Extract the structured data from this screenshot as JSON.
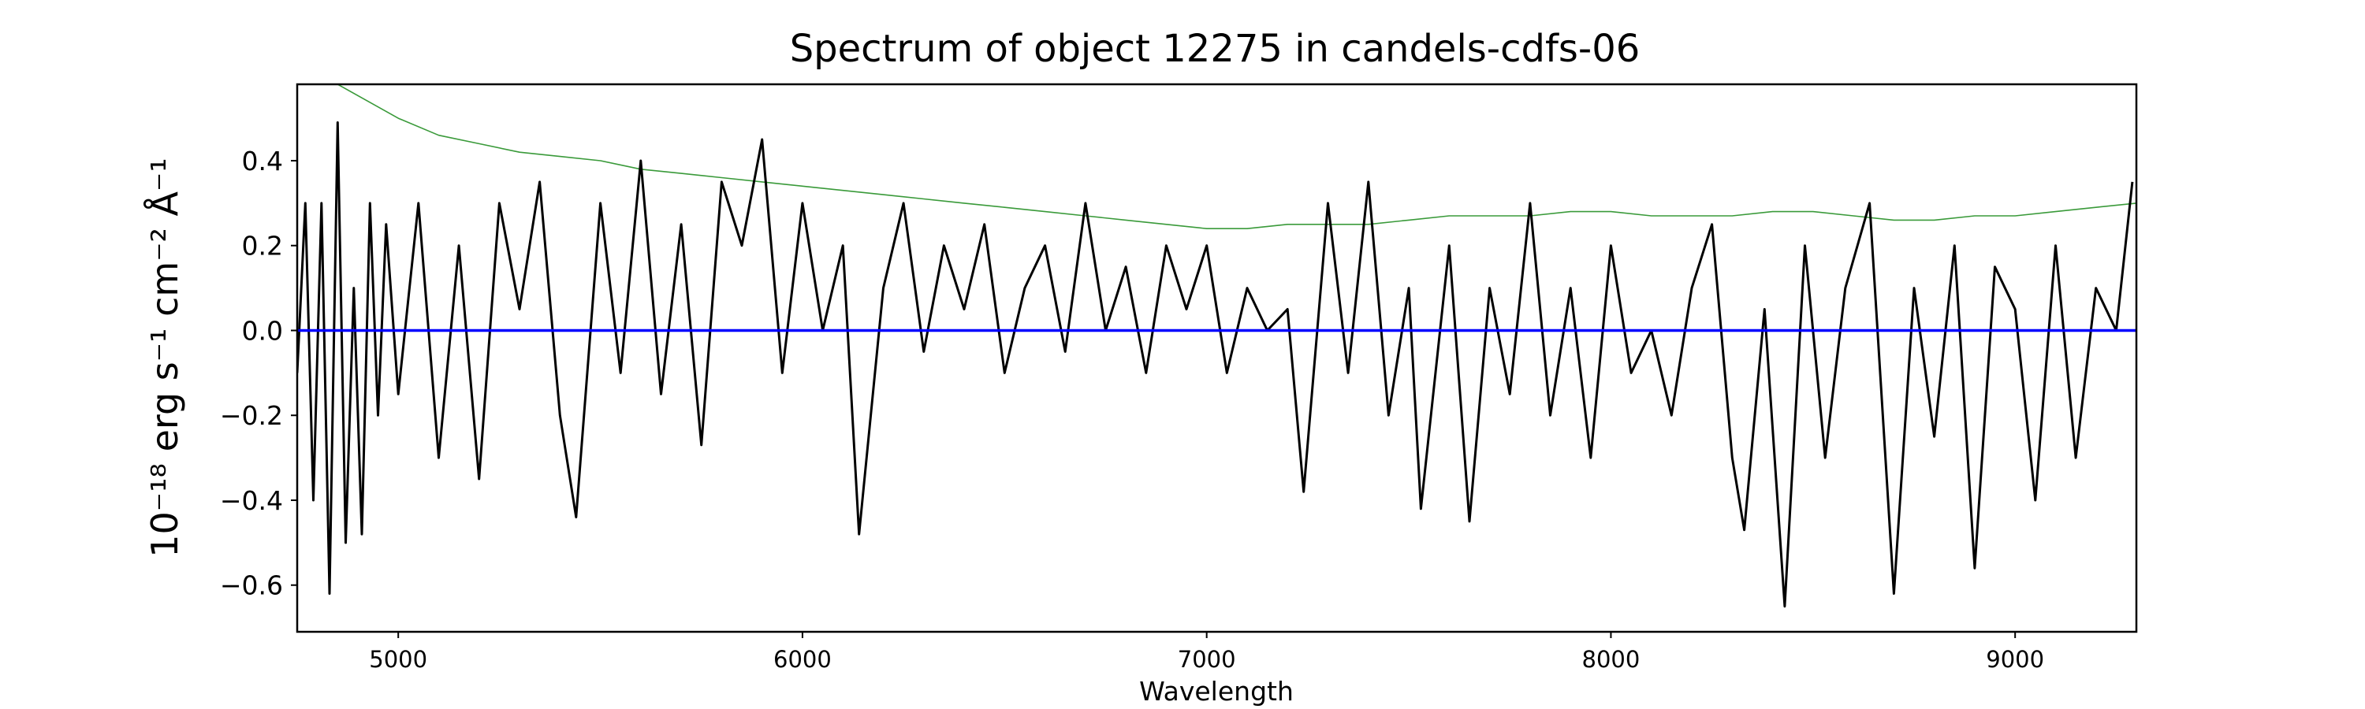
{
  "chart_data": {
    "type": "line",
    "title": "Spectrum of object 12275 in candels-cdfs-06",
    "xlabel": "Wavelength",
    "ylabel": "10⁻¹⁸ erg s⁻¹ cm⁻² Å⁻¹",
    "xlim": [
      4750,
      9300
    ],
    "ylim": [
      -0.71,
      0.58
    ],
    "x_ticks": [
      5000,
      6000,
      7000,
      8000,
      9000
    ],
    "y_ticks": [
      -0.6,
      -0.4,
      -0.2,
      0.0,
      0.2,
      0.4
    ],
    "y_tick_labels": [
      "−0.6",
      "−0.4",
      "−0.2",
      "0.0",
      "0.2",
      "0.4"
    ],
    "grid": false,
    "series": [
      {
        "role": "flux",
        "color": "#000000",
        "x": [
          4750,
          4770,
          4790,
          4810,
          4830,
          4850,
          4870,
          4890,
          4910,
          4930,
          4950,
          4970,
          5000,
          5050,
          5100,
          5150,
          5200,
          5250,
          5300,
          5350,
          5400,
          5440,
          5500,
          5550,
          5600,
          5650,
          5700,
          5750,
          5800,
          5850,
          5900,
          5950,
          6000,
          6050,
          6100,
          6140,
          6200,
          6250,
          6300,
          6350,
          6400,
          6450,
          6500,
          6550,
          6600,
          6650,
          6700,
          6750,
          6800,
          6850,
          6900,
          6950,
          7000,
          7050,
          7100,
          7150,
          7200,
          7240,
          7300,
          7350,
          7400,
          7450,
          7500,
          7530,
          7600,
          7650,
          7700,
          7750,
          7800,
          7850,
          7900,
          7950,
          8000,
          8050,
          8100,
          8150,
          8200,
          8250,
          8300,
          8330,
          8380,
          8430,
          8480,
          8530,
          8580,
          8640,
          8700,
          8750,
          8800,
          8850,
          8900,
          8950,
          9000,
          9050,
          9100,
          9150,
          9200,
          9250,
          9290
        ],
        "y": [
          -0.1,
          0.3,
          -0.4,
          0.3,
          -0.62,
          0.49,
          -0.5,
          0.1,
          -0.48,
          0.3,
          -0.2,
          0.25,
          -0.15,
          0.3,
          -0.3,
          0.2,
          -0.35,
          0.3,
          0.05,
          0.35,
          -0.2,
          -0.44,
          0.3,
          -0.1,
          0.4,
          -0.15,
          0.25,
          -0.27,
          0.35,
          0.2,
          0.45,
          -0.1,
          0.3,
          0.0,
          0.2,
          -0.48,
          0.1,
          0.3,
          -0.05,
          0.2,
          0.05,
          0.25,
          -0.1,
          0.1,
          0.2,
          -0.05,
          0.3,
          0.0,
          0.15,
          -0.1,
          0.2,
          0.05,
          0.2,
          -0.1,
          0.1,
          0.0,
          0.05,
          -0.38,
          0.3,
          -0.1,
          0.35,
          -0.2,
          0.1,
          -0.42,
          0.2,
          -0.45,
          0.1,
          -0.15,
          0.3,
          -0.2,
          0.1,
          -0.3,
          0.2,
          -0.1,
          0.0,
          -0.2,
          0.1,
          0.25,
          -0.3,
          -0.47,
          0.05,
          -0.65,
          0.2,
          -0.3,
          0.1,
          0.3,
          -0.62,
          0.1,
          -0.25,
          0.2,
          -0.56,
          0.15,
          0.05,
          -0.4,
          0.2,
          -0.3,
          0.1,
          0.0,
          0.35
        ]
      },
      {
        "role": "model",
        "color": "#0000ff",
        "x": [
          4750,
          9300
        ],
        "y": [
          0.0,
          0.0
        ]
      },
      {
        "role": "error",
        "color": "#3a9a3a",
        "x": [
          4750,
          4850,
          5000,
          5100,
          5200,
          5300,
          5400,
          5500,
          5600,
          5700,
          5800,
          5900,
          6000,
          6100,
          6200,
          6300,
          6400,
          6500,
          6600,
          6700,
          6800,
          6900,
          7000,
          7100,
          7200,
          7300,
          7400,
          7500,
          7600,
          7700,
          7800,
          7900,
          8000,
          8100,
          8200,
          8300,
          8400,
          8500,
          8600,
          8700,
          8800,
          8900,
          9000,
          9100,
          9200,
          9300
        ],
        "y": [
          0.6,
          0.58,
          0.5,
          0.46,
          0.44,
          0.42,
          0.41,
          0.4,
          0.38,
          0.37,
          0.36,
          0.35,
          0.34,
          0.33,
          0.32,
          0.31,
          0.3,
          0.29,
          0.28,
          0.27,
          0.26,
          0.25,
          0.24,
          0.24,
          0.25,
          0.25,
          0.25,
          0.26,
          0.27,
          0.27,
          0.27,
          0.28,
          0.28,
          0.27,
          0.27,
          0.27,
          0.28,
          0.28,
          0.27,
          0.26,
          0.26,
          0.27,
          0.27,
          0.28,
          0.29,
          0.3
        ]
      }
    ]
  }
}
